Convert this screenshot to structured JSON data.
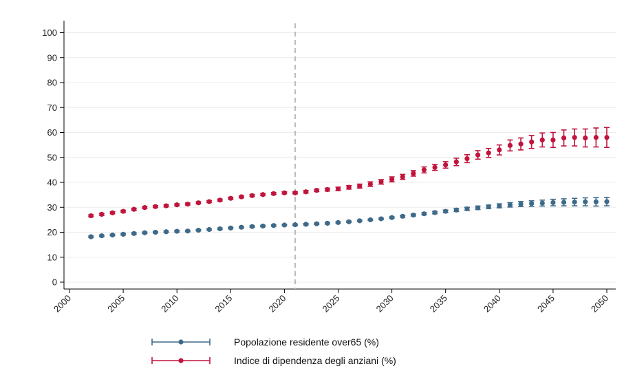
{
  "chart_data": {
    "type": "scatter",
    "title": "",
    "xlabel": "",
    "ylabel": "",
    "xlim": [
      2000,
      2050
    ],
    "ylim": [
      0,
      100
    ],
    "xticks": [
      2000,
      2005,
      2010,
      2015,
      2020,
      2025,
      2030,
      2035,
      2040,
      2045,
      2050
    ],
    "yticks": [
      0,
      10,
      20,
      30,
      40,
      50,
      60,
      70,
      80,
      90,
      100
    ],
    "xtick_labels": [
      "2000",
      "2005",
      "2010",
      "2015",
      "2020",
      "2025",
      "2030",
      "2035",
      "2040",
      "2045",
      "2050"
    ],
    "ytick_labels": [
      "0",
      "10",
      "20",
      "30",
      "40",
      "50",
      "60",
      "70",
      "80",
      "90",
      "100"
    ],
    "grid": "horizontal",
    "legend_position": "bottom",
    "vline": {
      "x": 2021,
      "style": "dashed",
      "color": "#bbbbbb"
    },
    "x": [
      2002,
      2003,
      2004,
      2005,
      2006,
      2007,
      2008,
      2009,
      2010,
      2011,
      2012,
      2013,
      2014,
      2015,
      2016,
      2017,
      2018,
      2019,
      2020,
      2021,
      2022,
      2023,
      2024,
      2025,
      2026,
      2027,
      2028,
      2029,
      2030,
      2031,
      2032,
      2033,
      2034,
      2035,
      2036,
      2037,
      2038,
      2039,
      2040,
      2041,
      2042,
      2043,
      2044,
      2045,
      2046,
      2047,
      2048,
      2049,
      2050
    ],
    "series": [
      {
        "name": "Popolazione residente over65 (%)",
        "color": "#3e6a8a",
        "values": [
          18.2,
          18.6,
          18.9,
          19.2,
          19.5,
          19.8,
          20.0,
          20.2,
          20.4,
          20.5,
          20.8,
          21.1,
          21.4,
          21.7,
          22.0,
          22.3,
          22.5,
          22.7,
          22.9,
          23.0,
          23.2,
          23.4,
          23.6,
          23.9,
          24.2,
          24.6,
          25.0,
          25.4,
          25.9,
          26.4,
          26.9,
          27.4,
          27.9,
          28.4,
          28.9,
          29.4,
          29.8,
          30.2,
          30.6,
          31.0,
          31.3,
          31.5,
          31.7,
          31.9,
          32.0,
          32.1,
          32.2,
          32.2,
          32.3
        ],
        "err": [
          0.3,
          0.3,
          0.3,
          0.3,
          0.3,
          0.3,
          0.3,
          0.3,
          0.3,
          0.3,
          0.3,
          0.3,
          0.3,
          0.3,
          0.3,
          0.3,
          0.3,
          0.3,
          0.3,
          0.3,
          0.3,
          0.3,
          0.3,
          0.3,
          0.3,
          0.3,
          0.3,
          0.3,
          0.3,
          0.4,
          0.4,
          0.4,
          0.5,
          0.5,
          0.6,
          0.6,
          0.7,
          0.7,
          0.8,
          0.9,
          1.0,
          1.1,
          1.2,
          1.3,
          1.4,
          1.5,
          1.6,
          1.7,
          1.7
        ]
      },
      {
        "name": "Indice di dipendenza degli anziani (%)",
        "color": "#c0143c",
        "values": [
          26.6,
          27.2,
          27.8,
          28.4,
          29.2,
          29.9,
          30.3,
          30.6,
          31.0,
          31.3,
          31.8,
          32.3,
          32.9,
          33.6,
          34.2,
          34.7,
          35.1,
          35.5,
          35.8,
          35.8,
          36.2,
          36.8,
          37.1,
          37.4,
          38.0,
          38.5,
          39.3,
          40.2,
          41.2,
          42.2,
          43.6,
          45.0,
          46.0,
          47.0,
          48.2,
          49.5,
          51.0,
          51.8,
          53.0,
          54.8,
          55.4,
          56.2,
          57.0,
          57.0,
          57.8,
          58.0,
          57.8,
          58.0,
          58.0
        ],
        "err": [
          0.4,
          0.4,
          0.4,
          0.4,
          0.4,
          0.4,
          0.4,
          0.4,
          0.4,
          0.4,
          0.4,
          0.4,
          0.4,
          0.4,
          0.4,
          0.4,
          0.4,
          0.4,
          0.4,
          0.4,
          0.5,
          0.5,
          0.6,
          0.7,
          0.7,
          0.8,
          0.9,
          0.9,
          1.0,
          1.0,
          1.1,
          1.2,
          1.2,
          1.3,
          1.5,
          1.6,
          1.7,
          1.8,
          2.0,
          2.2,
          2.4,
          2.6,
          2.8,
          3.0,
          3.2,
          3.4,
          3.6,
          3.8,
          4.0
        ]
      }
    ]
  }
}
